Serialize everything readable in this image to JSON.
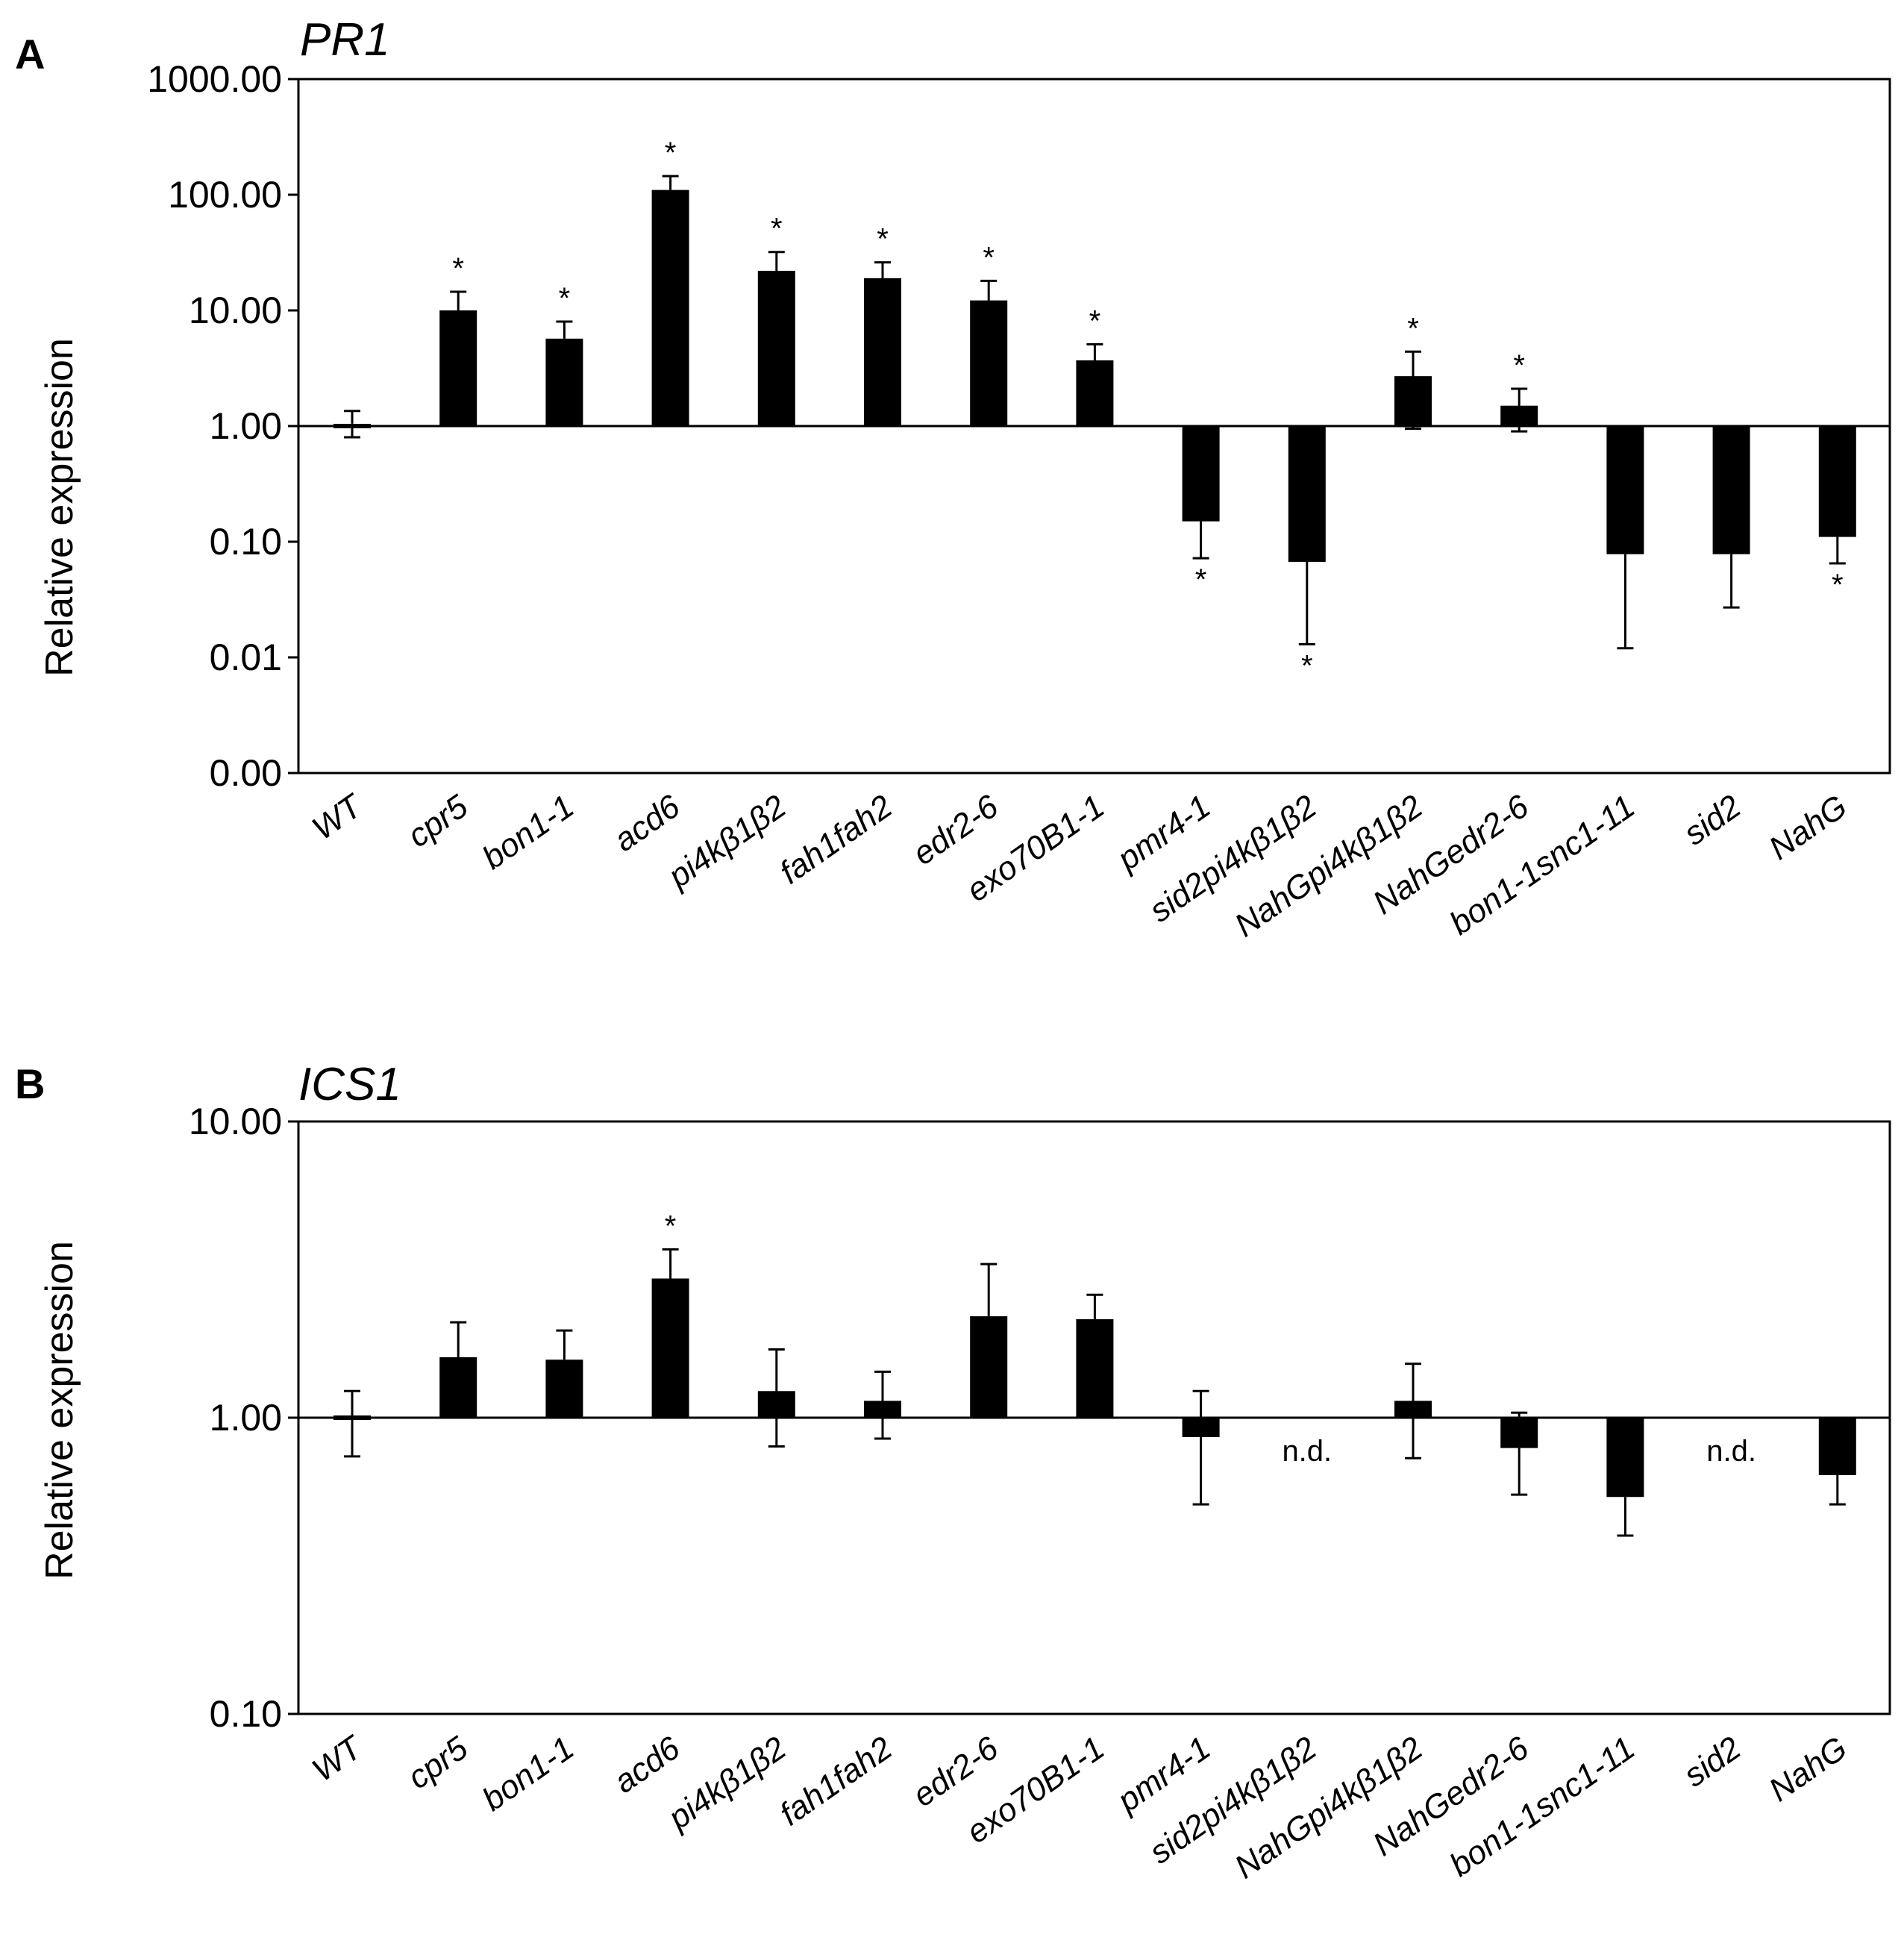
{
  "chart_data": [
    {
      "type": "bar",
      "panel": "A",
      "title": "PR1",
      "ylabel": "Relative expression",
      "xlabel": "",
      "yscale": "log",
      "ylim": [
        0.001,
        1000
      ],
      "ytick_values": [
        0.001,
        0.01,
        0.1,
        1,
        10,
        100,
        1000
      ],
      "ytick_labels": [
        "0.00",
        "0.01",
        "0.10",
        "1.00",
        "10.00",
        "100.00",
        "1000.00"
      ],
      "baseline": 1,
      "categories": [
        "WT",
        "cpr5",
        "bon1-1",
        "acd6",
        "pi4kβ1β2",
        "fah1fah2",
        "edr2-6",
        "exo70B1-1",
        "pmr4-1",
        "sid2pi4kβ1β2",
        "NahGpi4kβ1β2",
        "NahGedr2-6",
        "bon1-1snc1-11",
        "sid2",
        "NahG"
      ],
      "values": [
        1.05,
        10.0,
        5.7,
        110,
        22,
        19,
        12.2,
        3.7,
        0.15,
        0.067,
        2.7,
        1.5,
        0.078,
        0.078,
        0.11
      ],
      "error_tips": [
        1.35,
        14.5,
        8.0,
        145,
        32,
        26,
        18,
        5.1,
        0.072,
        0.013,
        4.4,
        2.1,
        0.012,
        0.027,
        0.065
      ],
      "error_lower": [
        0.8,
        null,
        null,
        null,
        null,
        null,
        null,
        null,
        null,
        null,
        0.95,
        0.9,
        null,
        null,
        null
      ],
      "significance": [
        "",
        "*",
        "*",
        "*",
        "*",
        "*",
        "*",
        "*",
        "*",
        "*",
        "*",
        "*",
        "",
        "",
        "*"
      ],
      "not_detected": [
        "",
        "",
        "",
        "",
        "",
        "",
        "",
        "",
        "",
        "",
        "",
        "",
        "",
        "",
        ""
      ]
    },
    {
      "type": "bar",
      "panel": "B",
      "title": "ICS1",
      "ylabel": "Relative expression",
      "xlabel": "",
      "yscale": "log",
      "ylim": [
        0.1,
        10
      ],
      "ytick_values": [
        0.1,
        1,
        10
      ],
      "ytick_labels": [
        "0.10",
        "1.00",
        "10.00"
      ],
      "baseline": 1,
      "categories": [
        "WT",
        "cpr5",
        "bon1-1",
        "acd6",
        "pi4kβ1β2",
        "fah1fah2",
        "edr2-6",
        "exo70B1-1",
        "pmr4-1",
        "sid2pi4kβ1β2",
        "NahGpi4kβ1β2",
        "NahGedr2-6",
        "bon1-1snc1-11",
        "sid2",
        "NahG"
      ],
      "values": [
        1.02,
        1.6,
        1.57,
        2.95,
        1.23,
        1.14,
        2.2,
        2.15,
        0.86,
        null,
        1.14,
        0.79,
        0.54,
        null,
        0.64
      ],
      "error_tips": [
        1.23,
        2.1,
        1.97,
        3.7,
        1.7,
        1.43,
        3.3,
        2.6,
        0.51,
        null,
        1.52,
        0.55,
        0.4,
        null,
        0.51
      ],
      "error_lower": [
        0.74,
        null,
        null,
        null,
        0.8,
        0.85,
        null,
        null,
        1.23,
        null,
        0.73,
        1.04,
        null,
        null,
        null
      ],
      "significance": [
        "",
        "",
        "",
        "*",
        "",
        "",
        "",
        "",
        "",
        "",
        "",
        "",
        "",
        "",
        ""
      ],
      "not_detected": [
        "",
        "",
        "",
        "",
        "",
        "",
        "",
        "",
        "",
        "n.d.",
        "",
        "",
        "",
        "n.d.",
        ""
      ]
    }
  ]
}
